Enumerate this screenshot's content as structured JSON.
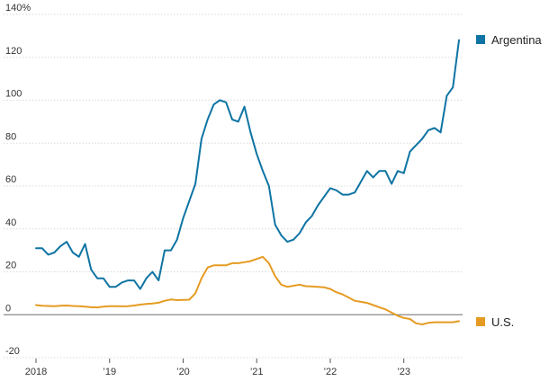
{
  "chart_data": {
    "type": "line",
    "y_unit_suffix": "%",
    "ylim": [
      -20,
      140
    ],
    "y_ticks": [
      140,
      120,
      100,
      80,
      60,
      40,
      20,
      0,
      -20
    ],
    "x_tick_labels": [
      "2018",
      "’19",
      "’20",
      "’21",
      "’22",
      "’23"
    ],
    "x_tick_years": [
      2018,
      2019,
      2020,
      2021,
      2022,
      2023
    ],
    "grid": true,
    "legend_placement": "right, at end of each line",
    "x_start": "2018-01",
    "x_step": "month",
    "series": [
      {
        "name": "Argentina",
        "color": "#0e74a3",
        "values": [
          31,
          31,
          28,
          29,
          32,
          34,
          29,
          27,
          33,
          21,
          17,
          17,
          13,
          13,
          15,
          16,
          16,
          12,
          17,
          20,
          16,
          30,
          30,
          35,
          45,
          53,
          61,
          82,
          91,
          98,
          100,
          99,
          91,
          90,
          97,
          85,
          75,
          67,
          60,
          42,
          37,
          34,
          35,
          38,
          43,
          46,
          51,
          55,
          59,
          58,
          56,
          56,
          57,
          62,
          67,
          64,
          67,
          67,
          61,
          67,
          66,
          76,
          79,
          82,
          86,
          87,
          85,
          102,
          106,
          128
        ]
      },
      {
        "name": "U.S.",
        "color": "#e59b22",
        "values": [
          4.5,
          4.2,
          4.1,
          4.0,
          4.2,
          4.3,
          4.1,
          4.0,
          3.8,
          3.5,
          3.4,
          3.8,
          4.0,
          4.0,
          3.9,
          4.0,
          4.3,
          4.7,
          5.0,
          5.2,
          5.6,
          6.5,
          7.1,
          6.8,
          6.9,
          7.0,
          10.0,
          17.0,
          22.0,
          23.0,
          23.0,
          23.0,
          24.0,
          24.0,
          24.5,
          25.0,
          26.0,
          27.0,
          24.0,
          18.0,
          14.0,
          13.0,
          13.5,
          14.0,
          13.3,
          13.2,
          13.0,
          12.8,
          12.0,
          10.5,
          9.5,
          8.0,
          6.5,
          6.0,
          5.5,
          4.5,
          3.5,
          2.5,
          1.0,
          -0.5,
          -1.5,
          -2.0,
          -4.0,
          -4.5,
          -3.8,
          -3.5,
          -3.5,
          -3.5,
          -3.5,
          -3.0
        ]
      }
    ]
  }
}
